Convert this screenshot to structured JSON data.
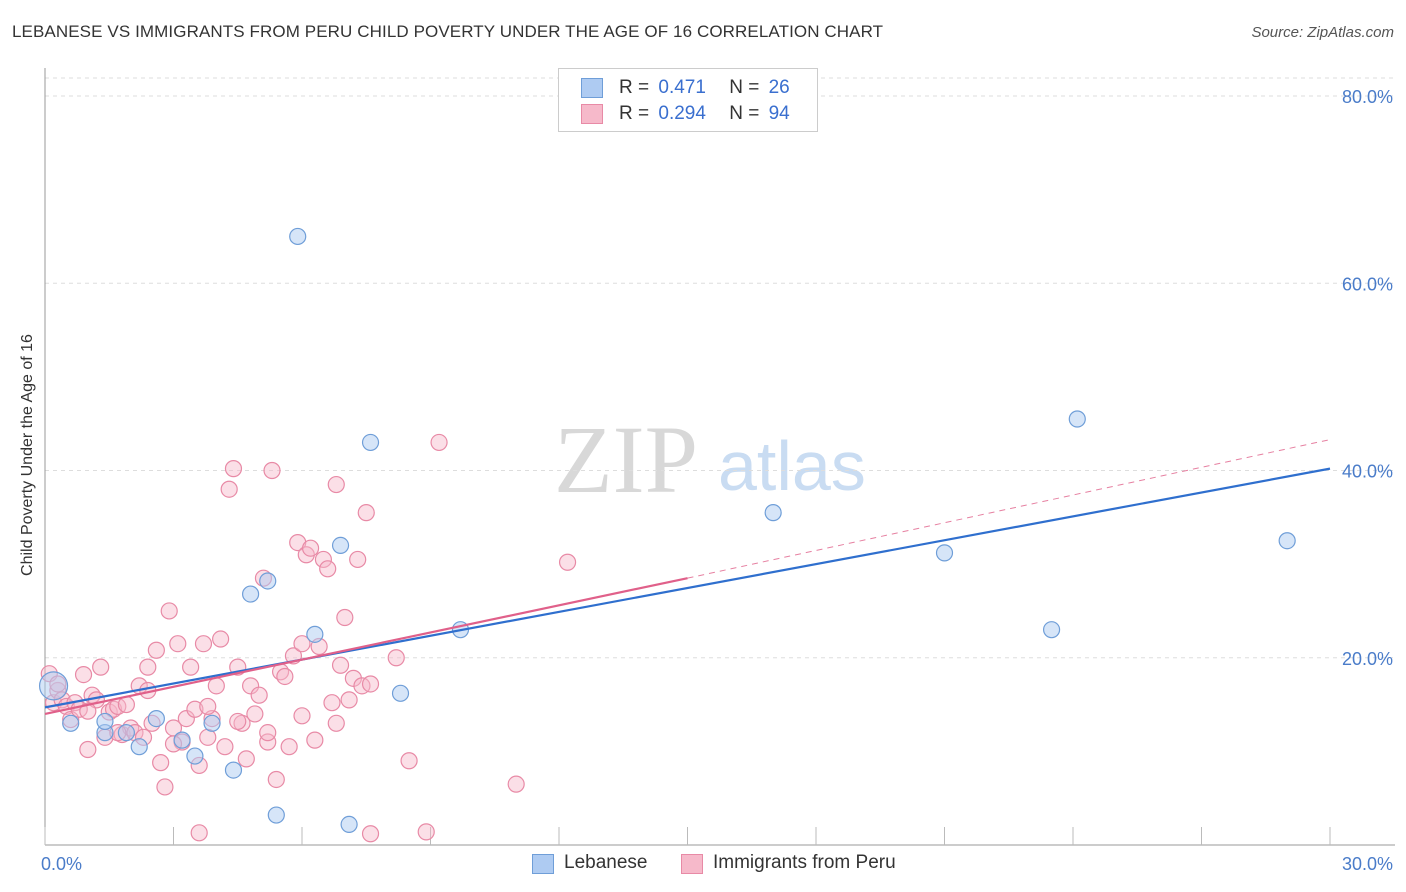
{
  "title": "LEBANESE VS IMMIGRANTS FROM PERU CHILD POVERTY UNDER THE AGE OF 16 CORRELATION CHART",
  "source": "Source: ZipAtlas.com",
  "watermark": {
    "zip": "ZIP",
    "atlas": "atlas"
  },
  "colors": {
    "lebanese_fill": "#aecbf2",
    "lebanese_stroke": "#6f9ed8",
    "lebanese_line": "#2f6fce",
    "peru_fill": "#f6b9ca",
    "peru_stroke": "#e88aa6",
    "peru_line": "#e0608a",
    "axis_tick": "#4a7cc9",
    "grid": "#dddddd"
  },
  "legend": {
    "r_label": "R =",
    "n_label": "N =",
    "rows": [
      {
        "series": "Lebanese",
        "r": "0.471",
        "n": "26"
      },
      {
        "series": "Immigrants from Peru",
        "r": "0.294",
        "n": "94"
      }
    ]
  },
  "bottom_legend": [
    "Lebanese",
    "Immigrants from Peru"
  ],
  "chart_data": {
    "type": "scatter",
    "title": "LEBANESE VS IMMIGRANTS FROM PERU CHILD POVERTY UNDER THE AGE OF 16 CORRELATION CHART",
    "xlabel": "",
    "ylabel": "Child Poverty Under the Age of 16",
    "xlim": [
      0,
      30
    ],
    "ylim": [
      0,
      80
    ],
    "x_tick_labels": [
      "0.0%",
      "30.0%"
    ],
    "y_ticks": [
      20,
      40,
      60,
      80
    ],
    "y_tick_labels": [
      "20.0%",
      "40.0%",
      "60.0%",
      "80.0%"
    ],
    "grid": true,
    "legend_position": "top-center",
    "series": [
      {
        "name": "Lebanese",
        "r": 0.471,
        "n": 26,
        "trend": {
          "x": [
            0,
            30
          ],
          "y": [
            14.7,
            40.2
          ],
          "style": "solid"
        },
        "points": [
          [
            0.2,
            17.0
          ],
          [
            0.6,
            13.0
          ],
          [
            1.4,
            12.0
          ],
          [
            1.4,
            13.2
          ],
          [
            1.9,
            12.0
          ],
          [
            2.2,
            10.5
          ],
          [
            2.6,
            13.5
          ],
          [
            3.2,
            11.2
          ],
          [
            3.5,
            9.5
          ],
          [
            3.9,
            13.0
          ],
          [
            4.4,
            8.0
          ],
          [
            4.8,
            26.8
          ],
          [
            5.2,
            28.2
          ],
          [
            5.4,
            3.2
          ],
          [
            5.9,
            65.0
          ],
          [
            6.3,
            22.5
          ],
          [
            6.9,
            32.0
          ],
          [
            7.1,
            2.2
          ],
          [
            7.6,
            43.0
          ],
          [
            8.3,
            16.2
          ],
          [
            9.7,
            23.0
          ],
          [
            17.0,
            35.5
          ],
          [
            21.0,
            31.2
          ],
          [
            23.5,
            23.0
          ],
          [
            24.1,
            45.5
          ],
          [
            29.0,
            32.5
          ]
        ]
      },
      {
        "name": "Immigrants from Peru",
        "r": 0.294,
        "n": 94,
        "trend": {
          "x": [
            0,
            15
          ],
          "y": [
            14.0,
            28.5
          ],
          "style": "solid",
          "extension": {
            "x": [
              15,
              30
            ],
            "y": [
              28.5,
              43.3
            ],
            "style": "dashed"
          }
        },
        "points": [
          [
            0.1,
            18.3
          ],
          [
            0.2,
            15.2
          ],
          [
            0.3,
            16.5
          ],
          [
            0.4,
            15.5
          ],
          [
            0.5,
            14.8
          ],
          [
            0.6,
            13.4
          ],
          [
            0.7,
            15.2
          ],
          [
            0.8,
            14.5
          ],
          [
            0.9,
            18.2
          ],
          [
            1.0,
            10.2
          ],
          [
            1.1,
            16.0
          ],
          [
            1.2,
            15.5
          ],
          [
            1.3,
            19.0
          ],
          [
            1.4,
            11.5
          ],
          [
            1.5,
            14.2
          ],
          [
            1.6,
            14.5
          ],
          [
            1.7,
            14.8
          ],
          [
            1.8,
            11.8
          ],
          [
            1.9,
            15.0
          ],
          [
            2.0,
            12.5
          ],
          [
            2.1,
            12.0
          ],
          [
            2.2,
            17.0
          ],
          [
            2.3,
            11.5
          ],
          [
            2.4,
            19.0
          ],
          [
            2.5,
            13.0
          ],
          [
            2.6,
            20.8
          ],
          [
            2.7,
            8.8
          ],
          [
            2.8,
            6.2
          ],
          [
            2.9,
            25.0
          ],
          [
            3.0,
            12.5
          ],
          [
            3.1,
            21.5
          ],
          [
            3.2,
            11.0
          ],
          [
            3.3,
            13.5
          ],
          [
            3.4,
            19.0
          ],
          [
            3.5,
            14.5
          ],
          [
            3.6,
            8.5
          ],
          [
            3.7,
            21.5
          ],
          [
            3.8,
            11.5
          ],
          [
            3.9,
            13.5
          ],
          [
            4.0,
            17.0
          ],
          [
            4.1,
            22.0
          ],
          [
            4.2,
            10.5
          ],
          [
            4.3,
            38.0
          ],
          [
            4.4,
            40.2
          ],
          [
            4.5,
            19.0
          ],
          [
            4.6,
            13.0
          ],
          [
            4.7,
            9.2
          ],
          [
            4.8,
            17.0
          ],
          [
            4.9,
            14.0
          ],
          [
            5.0,
            16.0
          ],
          [
            5.1,
            28.5
          ],
          [
            5.2,
            11.0
          ],
          [
            5.3,
            40.0
          ],
          [
            5.4,
            7.0
          ],
          [
            5.5,
            18.5
          ],
          [
            5.6,
            18.0
          ],
          [
            5.7,
            10.5
          ],
          [
            5.8,
            20.2
          ],
          [
            5.9,
            32.3
          ],
          [
            6.0,
            21.5
          ],
          [
            6.1,
            31.0
          ],
          [
            6.2,
            31.7
          ],
          [
            6.3,
            11.2
          ],
          [
            6.4,
            21.2
          ],
          [
            6.5,
            30.5
          ],
          [
            6.6,
            29.5
          ],
          [
            6.7,
            15.2
          ],
          [
            6.8,
            38.5
          ],
          [
            6.9,
            19.2
          ],
          [
            7.0,
            24.3
          ],
          [
            7.1,
            15.5
          ],
          [
            7.2,
            17.8
          ],
          [
            7.3,
            30.5
          ],
          [
            7.4,
            17.0
          ],
          [
            7.5,
            35.5
          ],
          [
            7.6,
            1.2
          ],
          [
            8.2,
            20.0
          ],
          [
            8.5,
            9.0
          ],
          [
            8.9,
            1.4
          ],
          [
            9.2,
            43.0
          ],
          [
            11.0,
            6.5
          ],
          [
            12.2,
            30.2
          ],
          [
            3.6,
            1.3
          ],
          [
            0.3,
            17.2
          ],
          [
            1.0,
            14.3
          ],
          [
            1.7,
            12.0
          ],
          [
            2.4,
            16.5
          ],
          [
            3.0,
            10.8
          ],
          [
            3.8,
            14.8
          ],
          [
            4.5,
            13.2
          ],
          [
            5.2,
            12.0
          ],
          [
            6.0,
            13.8
          ],
          [
            6.8,
            13.0
          ],
          [
            7.6,
            17.2
          ]
        ]
      }
    ]
  }
}
